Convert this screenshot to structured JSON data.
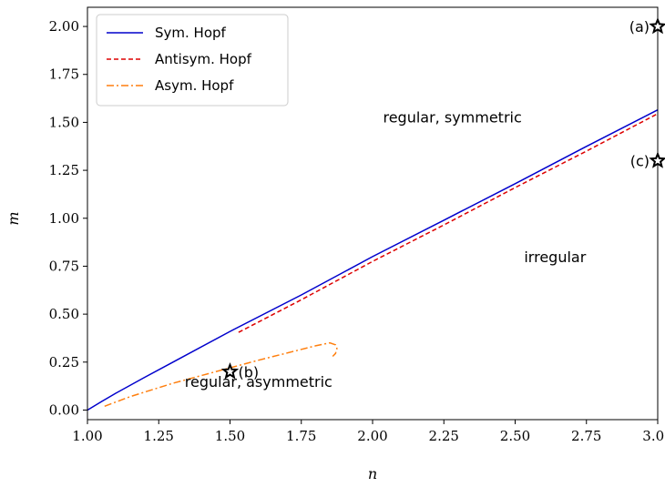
{
  "chart_data": {
    "type": "line",
    "xlabel": "n",
    "ylabel": "m",
    "xlim": [
      1.0,
      3.0
    ],
    "ylim": [
      -0.05,
      2.1
    ],
    "x_ticks": [
      "1.00",
      "1.25",
      "1.50",
      "1.75",
      "2.00",
      "2.25",
      "2.50",
      "2.75",
      "3.00"
    ],
    "y_ticks": [
      "0.00",
      "0.25",
      "0.50",
      "0.75",
      "1.00",
      "1.25",
      "1.50",
      "1.75",
      "2.00"
    ],
    "grid": false,
    "legend_position": "top-left",
    "series": [
      {
        "name": "Sym. Hopf",
        "color": "#0000cc",
        "style": "solid",
        "points": [
          [
            1.0,
            0.0
          ],
          [
            1.05,
            0.045
          ],
          [
            1.1,
            0.088
          ],
          [
            1.2,
            0.17
          ],
          [
            1.3,
            0.25
          ],
          [
            1.5,
            0.41
          ],
          [
            1.75,
            0.6
          ],
          [
            2.0,
            0.8
          ],
          [
            2.25,
            0.99
          ],
          [
            2.5,
            1.18
          ],
          [
            2.75,
            1.375
          ],
          [
            3.0,
            1.565
          ]
        ]
      },
      {
        "name": "Antisym. Hopf",
        "color": "#dd0000",
        "style": "dashed",
        "points": [
          [
            1.53,
            0.405
          ],
          [
            1.75,
            0.575
          ],
          [
            2.0,
            0.775
          ],
          [
            2.25,
            0.965
          ],
          [
            2.5,
            1.16
          ],
          [
            2.75,
            1.35
          ],
          [
            3.0,
            1.545
          ]
        ]
      },
      {
        "name": "Asym. Hopf",
        "color": "#ff7f0e",
        "style": "dashdot",
        "points": [
          [
            1.06,
            0.02
          ],
          [
            1.15,
            0.07
          ],
          [
            1.3,
            0.14
          ],
          [
            1.45,
            0.2
          ],
          [
            1.6,
            0.26
          ],
          [
            1.72,
            0.305
          ],
          [
            1.8,
            0.335
          ],
          [
            1.85,
            0.35
          ],
          [
            1.87,
            0.34
          ],
          [
            1.875,
            0.32
          ],
          [
            1.87,
            0.295
          ],
          [
            1.86,
            0.28
          ]
        ]
      }
    ],
    "markers": [
      {
        "label": "(a)",
        "x": 3.0,
        "y": 2.0,
        "side": "left"
      },
      {
        "label": "(b)",
        "x": 1.5,
        "y": 0.2,
        "side": "right"
      },
      {
        "label": "(c)",
        "x": 3.0,
        "y": 1.3,
        "side": "left"
      }
    ],
    "region_labels": [
      {
        "text": "regular, symmetric",
        "x": 2.28,
        "y": 1.5
      },
      {
        "text": "irregular",
        "x": 2.64,
        "y": 0.77
      },
      {
        "text": "regular, asymmetric",
        "x": 1.6,
        "y": 0.12
      }
    ]
  }
}
